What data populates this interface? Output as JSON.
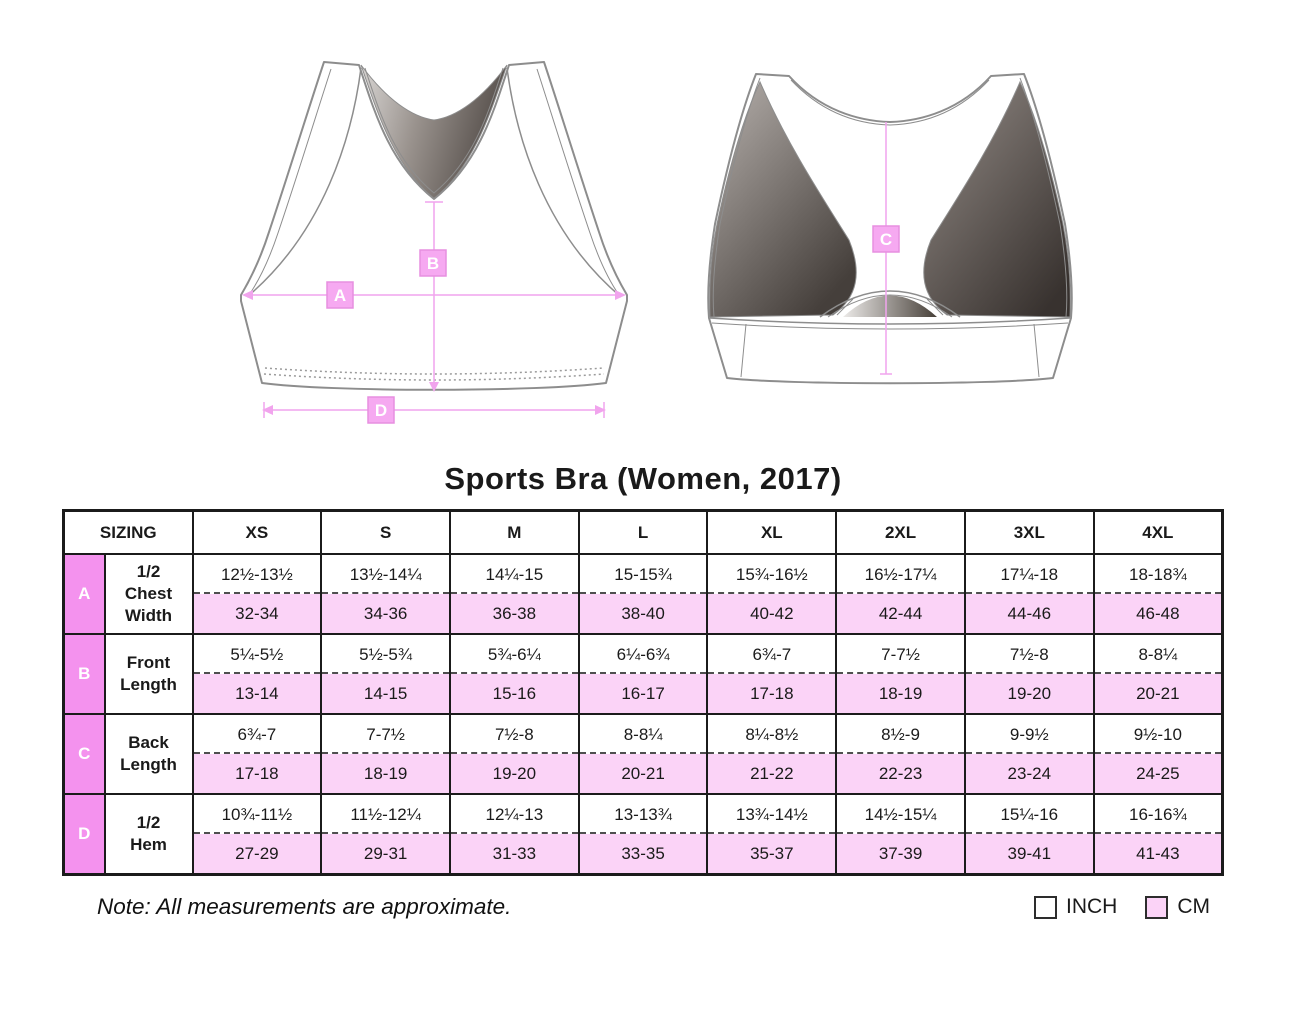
{
  "title": "Sports Bra (Women, 2017)",
  "note": "Note: All measurements are approximate.",
  "diagram": {
    "labels": {
      "a": "A",
      "b": "B",
      "c": "C",
      "d": "D"
    }
  },
  "table": {
    "sizing_header": "SIZING",
    "sizes": [
      "XS",
      "S",
      "M",
      "L",
      "XL",
      "2XL",
      "3XL",
      "4XL"
    ],
    "rows": [
      {
        "letter": "A",
        "label": "1/2\nChest\nWidth",
        "inch": [
          "12½-13½",
          "13½-14¼",
          "14¼-15",
          "15-15¾",
          "15¾-16½",
          "16½-17¼",
          "17¼-18",
          "18-18¾"
        ],
        "cm": [
          "32-34",
          "34-36",
          "36-38",
          "38-40",
          "40-42",
          "42-44",
          "44-46",
          "46-48"
        ]
      },
      {
        "letter": "B",
        "label": "Front\nLength",
        "inch": [
          "5¼-5½",
          "5½-5¾",
          "5¾-6¼",
          "6¼-6¾",
          "6¾-7",
          "7-7½",
          "7½-8",
          "8-8¼"
        ],
        "cm": [
          "13-14",
          "14-15",
          "15-16",
          "16-17",
          "17-18",
          "18-19",
          "19-20",
          "20-21"
        ]
      },
      {
        "letter": "C",
        "label": "Back\nLength",
        "inch": [
          "6¾-7",
          "7-7½",
          "7½-8",
          "8-8¼",
          "8¼-8½",
          "8½-9",
          "9-9½",
          "9½-10"
        ],
        "cm": [
          "17-18",
          "18-19",
          "19-20",
          "20-21",
          "21-22",
          "22-23",
          "23-24",
          "24-25"
        ]
      },
      {
        "letter": "D",
        "label": "1/2\nHem",
        "inch": [
          "10¾-11½",
          "11½-12¼",
          "12¼-13",
          "13-13¾",
          "13¾-14½",
          "14½-15¼",
          "15¼-16",
          "16-16¾"
        ],
        "cm": [
          "27-29",
          "29-31",
          "31-33",
          "33-35",
          "35-37",
          "37-39",
          "39-41",
          "41-43"
        ]
      }
    ]
  },
  "legend": {
    "items": [
      {
        "label": "INCH",
        "fill": "#ffffff"
      },
      {
        "label": "CM",
        "fill": "#fbd3f7"
      }
    ]
  },
  "colors": {
    "badge_pink": "#f492ee",
    "cm_row_pink": "#fbd3f7",
    "measure_line_pink": "#f1a4ed",
    "measure_box_pink": "#f6a9f1",
    "table_border": "#1b1b1b"
  }
}
